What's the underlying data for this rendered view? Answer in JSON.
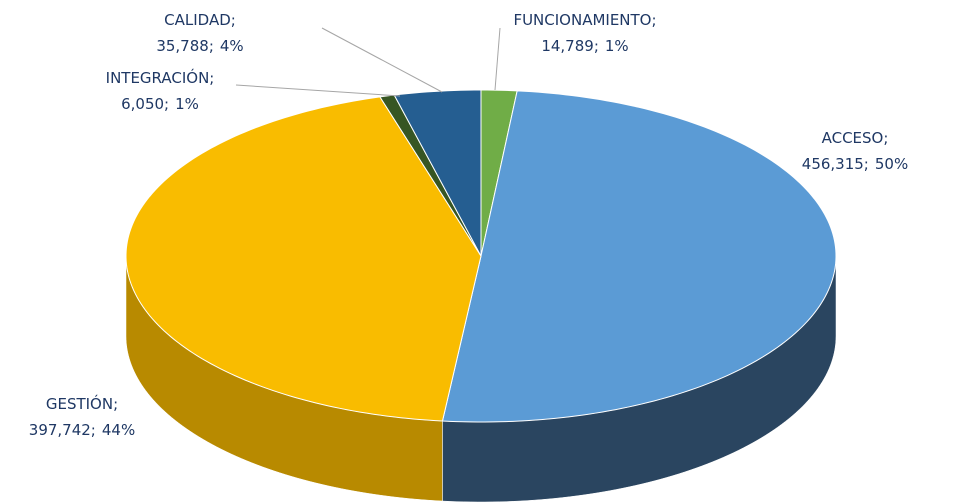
{
  "chart_data": {
    "type": "pie3d",
    "categories": [
      "FUNCIONAMIENTO;",
      "ACCESO;",
      "GESTIÓN;",
      "INTEGRACIÓN;",
      "CALIDAD;"
    ],
    "values": [
      14789,
      456315,
      397742,
      6050,
      35788
    ],
    "value_labels": [
      "14,789;",
      "456,315;",
      "397,742;",
      "6,050;",
      "35,788;"
    ],
    "percent_labels": [
      "1%",
      "50%",
      "44%",
      "1%",
      "4%"
    ],
    "colors": [
      "#70ad47",
      "#5b9bd5",
      "#f9bc00",
      "#375623",
      "#255e91"
    ],
    "side_colors": [
      "#4e7a31",
      "#2a4560",
      "#b88a00",
      "#24391a",
      "#1a4266"
    ]
  }
}
